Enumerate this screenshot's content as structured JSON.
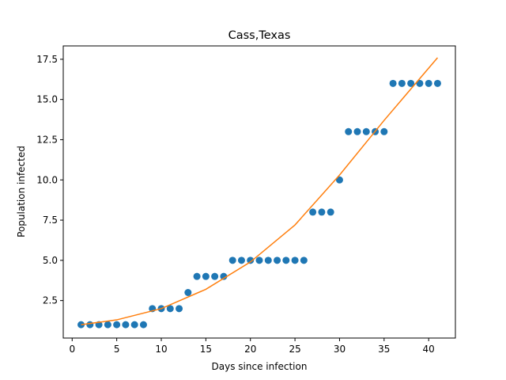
{
  "chart_data": {
    "type": "scatter",
    "title": "Cass,Texas",
    "xlabel": "Days since infection",
    "ylabel": "Population infected",
    "xlim": [
      -1,
      43
    ],
    "ylim": [
      0.17,
      18.33
    ],
    "xticks": [
      0,
      5,
      10,
      15,
      20,
      25,
      30,
      35,
      40
    ],
    "yticks": [
      2.5,
      5.0,
      7.5,
      10.0,
      12.5,
      15.0,
      17.5
    ],
    "grid": false,
    "legend": "none",
    "series": [
      {
        "kind": "scatter",
        "color": "#1f77b4",
        "x": [
          1,
          2,
          3,
          4,
          5,
          6,
          7,
          8,
          9,
          10,
          11,
          12,
          13,
          14,
          15,
          16,
          17,
          18,
          19,
          20,
          21,
          22,
          23,
          24,
          25,
          26,
          27,
          28,
          29,
          30,
          31,
          32,
          33,
          34,
          35,
          36,
          37,
          38,
          39,
          40,
          41
        ],
        "y": [
          1,
          1,
          1,
          1,
          1,
          1,
          1,
          1,
          2,
          2,
          2,
          2,
          3,
          4,
          4,
          4,
          4,
          5,
          5,
          5,
          5,
          5,
          5,
          5,
          5,
          5,
          8,
          8,
          8,
          10,
          13,
          13,
          13,
          13,
          13,
          16,
          16,
          16,
          16,
          16,
          16
        ]
      },
      {
        "kind": "line",
        "color": "#ff7f0e",
        "x": [
          1,
          5,
          10,
          15,
          20,
          25,
          30,
          35,
          41
        ],
        "y": [
          1.0,
          1.3,
          2.0,
          3.2,
          4.9,
          7.2,
          10.3,
          13.7,
          17.6
        ]
      }
    ]
  }
}
